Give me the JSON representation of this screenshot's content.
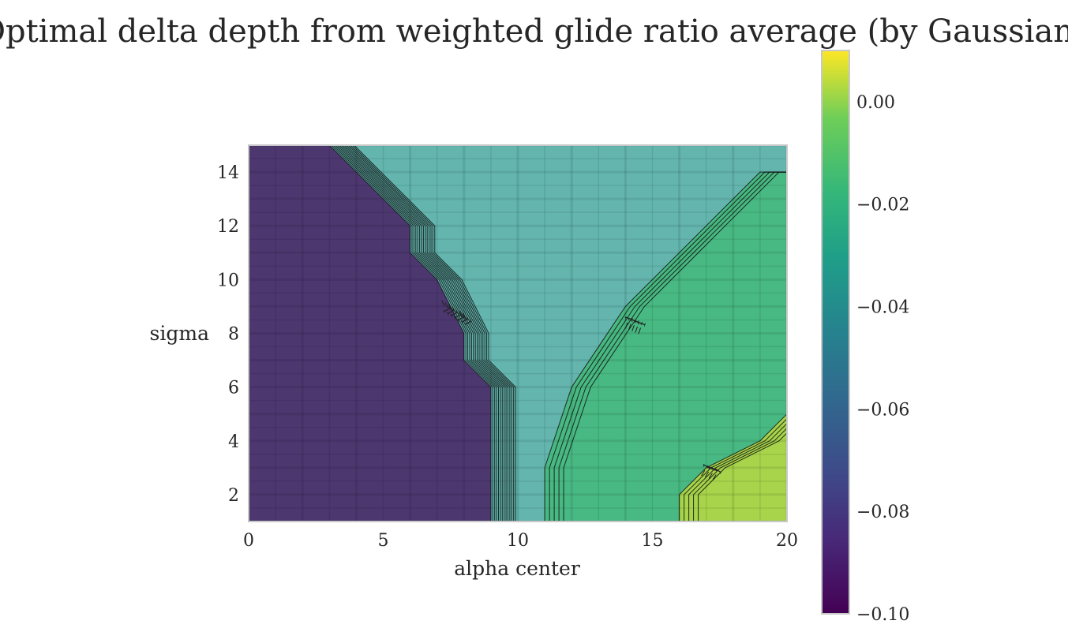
{
  "chart_data": {
    "type": "heatmap",
    "title": "Optimal delta depth from weighted glide ratio average (by Gaussian)",
    "xlabel": "alpha center",
    "ylabel": "sigma",
    "xlim": [
      0,
      20
    ],
    "ylim": [
      1,
      15
    ],
    "xticks": [
      0,
      5,
      10,
      15,
      20
    ],
    "yticks": [
      2,
      4,
      6,
      8,
      10,
      12,
      14
    ],
    "colormap": "viridis",
    "colorbar": {
      "vmin": -0.1,
      "vmax": 0.01,
      "ticks": [
        0.0,
        -0.02,
        -0.04,
        -0.06,
        -0.08,
        -0.1
      ],
      "tick_labels": [
        "0.00",
        "−0.02",
        "−0.04",
        "−0.06",
        "−0.08",
        "−0.10"
      ]
    },
    "grid": true,
    "regions": [
      {
        "value": -0.1,
        "boundary_upper_x": [
          {
            "sigma": 1,
            "x": 9
          },
          {
            "sigma": 6,
            "x": 9
          },
          {
            "sigma": 7,
            "x": 8
          },
          {
            "sigma": 8,
            "x": 8
          },
          {
            "sigma": 10,
            "x": 7
          },
          {
            "sigma": 11,
            "x": 6
          },
          {
            "sigma": 12,
            "x": 6
          },
          {
            "sigma": 15,
            "x": 3
          }
        ]
      },
      {
        "value": -0.035,
        "note_color": "teal"
      },
      {
        "value": -0.015,
        "boundary_lower_x": [
          {
            "sigma": 1,
            "x": 11
          },
          {
            "sigma": 3,
            "x": 11
          },
          {
            "sigma": 6,
            "x": 12
          },
          {
            "sigma": 9,
            "x": 14
          },
          {
            "sigma": 12,
            "x": 17
          },
          {
            "sigma": 14,
            "x": 19
          },
          {
            "sigma": 14,
            "x": 20
          }
        ]
      },
      {
        "value": 0.005,
        "boundary_lower_x": [
          {
            "sigma": 1,
            "x": 16
          },
          {
            "sigma": 2,
            "x": 16
          },
          {
            "sigma": 3,
            "x": 17
          },
          {
            "sigma": 4,
            "x": 19
          },
          {
            "sigma": 5,
            "x": 20
          }
        ]
      }
    ]
  }
}
